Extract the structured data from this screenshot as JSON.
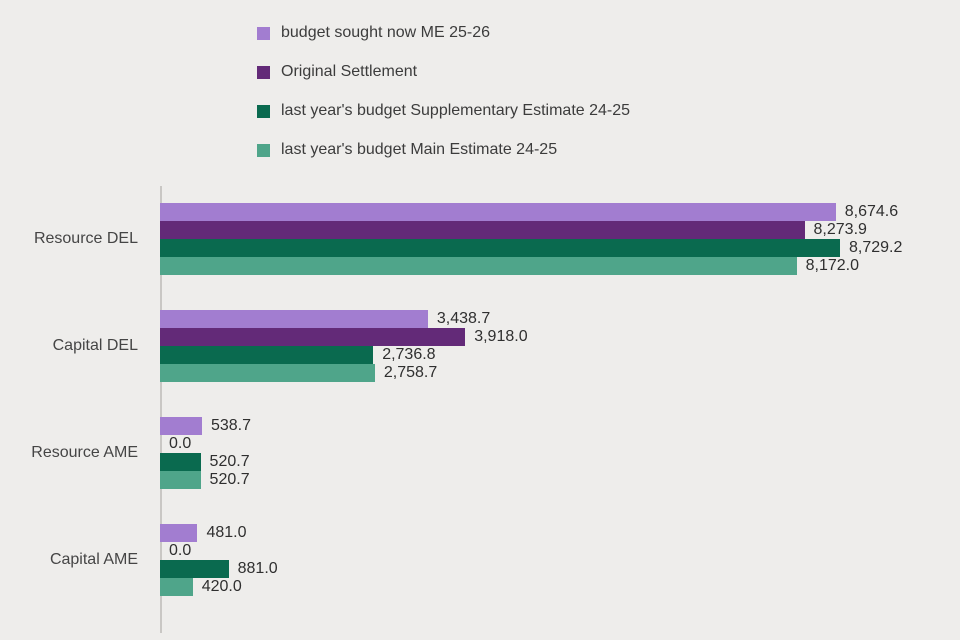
{
  "page": {
    "background_color": "#eeedeb",
    "text_color": "#3f3f3f",
    "axis_color": "#c9c7c4"
  },
  "chart_data": {
    "type": "bar",
    "orientation": "horizontal",
    "title": "",
    "xlabel": "",
    "ylabel": "",
    "grid": false,
    "legend_position": "top-left",
    "value_axis_range": [
      0,
      8729.2
    ],
    "categories": [
      "Resource DEL",
      "Capital DEL",
      "Resource AME",
      "Capital AME"
    ],
    "series": [
      {
        "name": "budget sought now ME 25-26",
        "color": "#a27dd0",
        "values": [
          8674.6,
          3438.7,
          538.7,
          481.0
        ],
        "labels": [
          "8,674.6",
          "3,438.7",
          "538.7",
          "481.0"
        ]
      },
      {
        "name": "Original Settlement",
        "color": "#632a78",
        "values": [
          8273.9,
          3918.0,
          0.0,
          0.0
        ],
        "labels": [
          "8,273.9",
          "3,918.0",
          "0.0",
          "0.0"
        ]
      },
      {
        "name": "last year's budget Supplementary Estimate 24-25",
        "color": "#0a6a4f",
        "values": [
          8729.2,
          2736.8,
          520.7,
          881.0
        ],
        "labels": [
          "8,729.2",
          "2,736.8",
          "520.7",
          "881.0"
        ]
      },
      {
        "name": "last year's budget Main Estimate 24-25",
        "color": "#4fa58a",
        "values": [
          8172.0,
          2758.7,
          520.7,
          420.0
        ],
        "labels": [
          "8,172.0",
          "2,758.7",
          "520.7",
          "420.0"
        ]
      }
    ]
  }
}
